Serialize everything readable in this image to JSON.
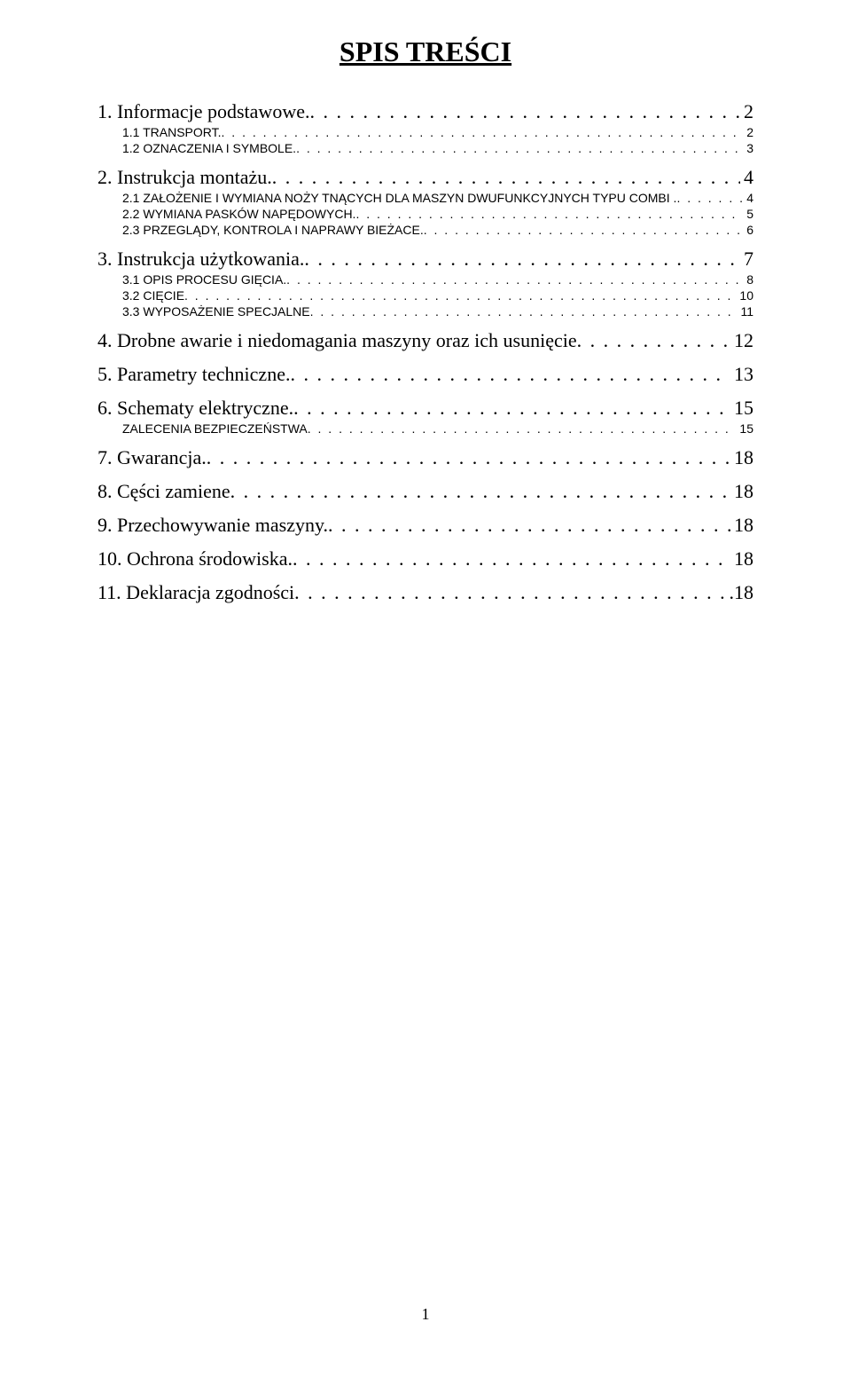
{
  "title": "SPIS TREŚCI",
  "page_number": "1",
  "colors": {
    "background": "#ffffff",
    "text": "#000000"
  },
  "typography": {
    "title_fontsize": 32,
    "level1_fontsize": 22,
    "level2_fontsize": 14,
    "level1_family": "Times New Roman",
    "level2_family": "Verdana"
  },
  "entries": [
    {
      "level": 1,
      "label": "1. Informacje podstawowe.",
      "page": "2"
    },
    {
      "level": 2,
      "label": "1.1 TRANSPORT.",
      "page": "2"
    },
    {
      "level": 2,
      "label": "1.2 OZNACZENIA I SYMBOLE.",
      "page": "3"
    },
    {
      "level": 1,
      "label": "2. Instrukcja montażu.",
      "page": "4"
    },
    {
      "level": 2,
      "label": "2.1 ZAŁOŻENIE I WYMIANA NOŻY TNĄCYCH DLA MASZYN DWUFUNKCYJNYCH TYPU  COMBI .",
      "page": "4"
    },
    {
      "level": 2,
      "label": "2.2 WYMIANA PASKÓW NAPĘDOWYCH.",
      "page": "5"
    },
    {
      "level": 2,
      "label": "2.3 PRZEGLĄDY, KONTROLA I NAPRAWY BIEŻACE.",
      "page": "6"
    },
    {
      "level": 1,
      "label": "3. Instrukcja użytkowania.",
      "page": "7"
    },
    {
      "level": 2,
      "label": "3.1 OPIS PROCESU GIĘCIA.",
      "page": "8"
    },
    {
      "level": 2,
      "label": "3.2 CIĘCIE",
      "page": "10"
    },
    {
      "level": 2,
      "label": "3.3 WYPOSAŻENIE SPECJALNE",
      "page": "11"
    },
    {
      "level": 1,
      "label": "4. Drobne awarie i niedomagania maszyny oraz ich usunięcie",
      "page": "12"
    },
    {
      "level": 1,
      "label": "5. Parametry techniczne.",
      "page": "13"
    },
    {
      "level": 1,
      "label": "6. Schematy elektryczne.",
      "page": "15"
    },
    {
      "level": 2,
      "label": "ZALECENIA BEZPIECZEŃSTWA",
      "page": "15"
    },
    {
      "level": 1,
      "label": "7. Gwarancja.",
      "page": "18"
    },
    {
      "level": 1,
      "label": "8. Cęści zamiene",
      "page": "18"
    },
    {
      "level": 1,
      "label": "9. Przechowywanie maszyny.",
      "page": "18"
    },
    {
      "level": 1,
      "label": "10. Ochrona środowiska.",
      "page": "18"
    },
    {
      "level": 1,
      "label": "11. Deklaracja zgodności",
      "page": ".18"
    }
  ]
}
